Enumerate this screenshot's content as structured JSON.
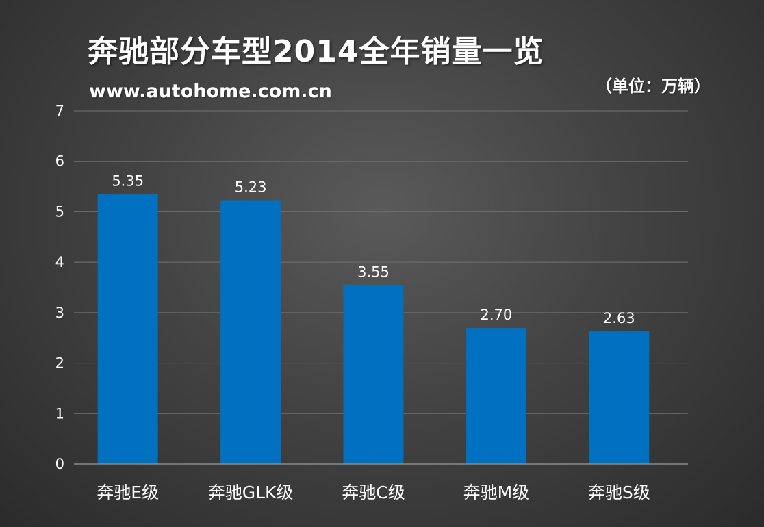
{
  "header": {
    "title": "奔驰部分车型2014全年销量一览",
    "source": "www.autohome.com.cn",
    "unit": "（单位：万辆）"
  },
  "colors": {
    "bar": "#0070c0",
    "grid": "#6a6a6a",
    "axis": "#8a8a8a",
    "text": "#ffffff"
  },
  "chart_data": {
    "type": "bar",
    "title": "奔驰部分车型2014全年销量一览",
    "subtitle": "www.autohome.com.cn",
    "ylabel": "（单位：万辆）",
    "xlabel": "",
    "categories": [
      "奔驰E级",
      "奔驰GLK级",
      "奔驰C级",
      "奔驰M级",
      "奔驰S级"
    ],
    "values": [
      5.35,
      5.23,
      3.55,
      2.7,
      2.63
    ],
    "value_labels": [
      "5.35",
      "5.23",
      "3.55",
      "2.70",
      "2.63"
    ],
    "ylim": [
      0,
      7
    ],
    "yticks": [
      "0",
      "1",
      "2",
      "3",
      "4",
      "5",
      "6",
      "7"
    ],
    "grid": true,
    "legend": "none"
  }
}
